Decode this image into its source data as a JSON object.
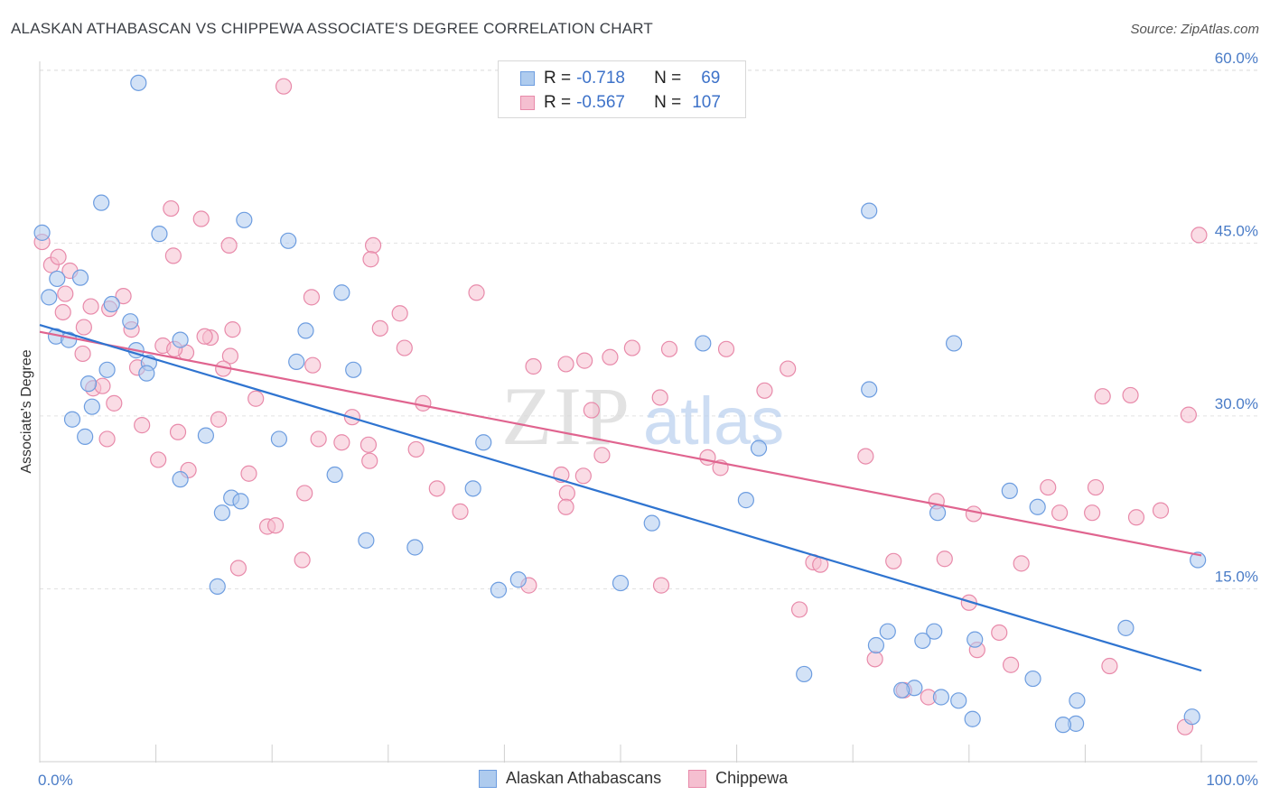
{
  "header": {
    "title": "ALASKAN ATHABASCAN VS CHIPPEWA ASSOCIATE'S DEGREE CORRELATION CHART",
    "source": "Source: ZipAtlas.com"
  },
  "legend": {
    "r_label": "R =",
    "n_label": "N =",
    "rows": [
      {
        "r": "-0.718",
        "n": "69"
      },
      {
        "r": "-0.567",
        "n": "107"
      }
    ]
  },
  "watermark": {
    "zip": "ZIP",
    "atlas": "atlas"
  },
  "colors": {
    "blue_fill": "#aecbee",
    "blue_stroke": "#6d9de0",
    "blue_line": "#2f74d0",
    "pink_fill": "#f5bfd0",
    "pink_stroke": "#e88aaa",
    "pink_line": "#e0648f",
    "tick_text": "#4a7cc7"
  },
  "chart_data": {
    "type": "scatter",
    "title": "ALASKAN ATHABASCAN VS CHIPPEWA ASSOCIATE'S DEGREE CORRELATION CHART",
    "xlabel": "",
    "ylabel": "Associate's Degree",
    "xlim": [
      0,
      100
    ],
    "ylim": [
      0,
      62.5
    ],
    "x_tick_labels": [
      "0.0%",
      "100.0%"
    ],
    "y_ticks": [
      15,
      30,
      45,
      60
    ],
    "y_tick_labels": [
      "15.0%",
      "30.0%",
      "45.0%",
      "60.0%"
    ],
    "grid": true,
    "legend_position": "top-center",
    "series": [
      {
        "name": "Alaskan Athabascans",
        "r": -0.718,
        "n": 69,
        "trend": {
          "x": [
            0,
            100
          ],
          "y": [
            37.9,
            7.9
          ]
        },
        "points": [
          [
            0.2,
            45.9
          ],
          [
            8.5,
            58.9
          ],
          [
            5.3,
            48.5
          ],
          [
            10.3,
            45.8
          ],
          [
            17.6,
            47.0
          ],
          [
            21.4,
            45.2
          ],
          [
            71.4,
            47.8
          ],
          [
            0.8,
            40.3
          ],
          [
            1.5,
            41.9
          ],
          [
            3.5,
            42.0
          ],
          [
            6.2,
            39.7
          ],
          [
            7.8,
            38.2
          ],
          [
            1.4,
            36.9
          ],
          [
            2.5,
            36.6
          ],
          [
            8.3,
            35.7
          ],
          [
            12.1,
            36.6
          ],
          [
            9.4,
            34.6
          ],
          [
            9.2,
            33.7
          ],
          [
            5.8,
            34.0
          ],
          [
            4.2,
            32.8
          ],
          [
            22.9,
            37.4
          ],
          [
            26.0,
            40.7
          ],
          [
            22.1,
            34.7
          ],
          [
            27.0,
            34.0
          ],
          [
            57.1,
            36.3
          ],
          [
            78.7,
            36.3
          ],
          [
            71.4,
            32.3
          ],
          [
            4.5,
            30.8
          ],
          [
            2.8,
            29.7
          ],
          [
            3.9,
            28.2
          ],
          [
            14.3,
            28.3
          ],
          [
            20.6,
            28.0
          ],
          [
            38.2,
            27.7
          ],
          [
            61.9,
            27.2
          ],
          [
            12.1,
            24.5
          ],
          [
            25.4,
            24.9
          ],
          [
            37.3,
            23.7
          ],
          [
            16.5,
            22.9
          ],
          [
            17.3,
            22.6
          ],
          [
            15.7,
            21.6
          ],
          [
            60.8,
            22.7
          ],
          [
            83.5,
            23.5
          ],
          [
            77.3,
            21.6
          ],
          [
            85.9,
            22.1
          ],
          [
            52.7,
            20.7
          ],
          [
            28.1,
            19.2
          ],
          [
            32.3,
            18.6
          ],
          [
            41.2,
            15.8
          ],
          [
            50.0,
            15.5
          ],
          [
            39.5,
            14.9
          ],
          [
            15.3,
            15.2
          ],
          [
            99.7,
            17.5
          ],
          [
            93.5,
            11.6
          ],
          [
            73.0,
            11.3
          ],
          [
            72.0,
            10.1
          ],
          [
            77.0,
            11.3
          ],
          [
            76.0,
            10.5
          ],
          [
            80.5,
            10.6
          ],
          [
            65.8,
            7.6
          ],
          [
            75.3,
            6.4
          ],
          [
            85.5,
            7.2
          ],
          [
            74.2,
            6.2
          ],
          [
            77.6,
            5.6
          ],
          [
            79.1,
            5.3
          ],
          [
            80.3,
            3.7
          ],
          [
            89.3,
            5.3
          ],
          [
            89.2,
            3.3
          ],
          [
            88.1,
            3.2
          ],
          [
            99.2,
            3.9
          ]
        ]
      },
      {
        "name": "Chippewa",
        "r": -0.567,
        "n": 107,
        "trend": {
          "x": [
            0,
            100
          ],
          "y": [
            37.3,
            17.9
          ]
        },
        "points": [
          [
            0.2,
            45.1
          ],
          [
            21.0,
            58.6
          ],
          [
            11.3,
            48.0
          ],
          [
            13.9,
            47.1
          ],
          [
            16.3,
            44.8
          ],
          [
            28.7,
            44.8
          ],
          [
            99.8,
            45.7
          ],
          [
            1.0,
            43.1
          ],
          [
            1.6,
            43.8
          ],
          [
            2.6,
            42.6
          ],
          [
            11.5,
            43.9
          ],
          [
            28.5,
            43.6
          ],
          [
            23.4,
            40.3
          ],
          [
            37.6,
            40.7
          ],
          [
            2.2,
            40.6
          ],
          [
            6.0,
            39.3
          ],
          [
            4.4,
            39.5
          ],
          [
            2.0,
            39.0
          ],
          [
            7.2,
            40.4
          ],
          [
            31.0,
            38.9
          ],
          [
            29.3,
            37.6
          ],
          [
            3.8,
            37.7
          ],
          [
            7.9,
            37.5
          ],
          [
            14.7,
            36.8
          ],
          [
            14.2,
            36.9
          ],
          [
            10.6,
            36.1
          ],
          [
            12.6,
            35.5
          ],
          [
            11.6,
            35.8
          ],
          [
            16.4,
            35.2
          ],
          [
            3.7,
            35.4
          ],
          [
            31.4,
            35.9
          ],
          [
            51.0,
            35.9
          ],
          [
            54.2,
            35.8
          ],
          [
            59.1,
            35.8
          ],
          [
            49.1,
            35.1
          ],
          [
            46.9,
            34.8
          ],
          [
            42.5,
            34.3
          ],
          [
            45.3,
            34.5
          ],
          [
            64.4,
            34.1
          ],
          [
            8.4,
            34.2
          ],
          [
            15.8,
            34.1
          ],
          [
            23.5,
            34.4
          ],
          [
            4.6,
            32.4
          ],
          [
            5.4,
            32.6
          ],
          [
            6.4,
            31.1
          ],
          [
            18.6,
            31.5
          ],
          [
            33.0,
            31.1
          ],
          [
            47.5,
            30.5
          ],
          [
            53.4,
            31.6
          ],
          [
            62.4,
            32.2
          ],
          [
            91.5,
            31.7
          ],
          [
            93.9,
            31.8
          ],
          [
            98.9,
            30.1
          ],
          [
            26.9,
            29.9
          ],
          [
            15.4,
            29.7
          ],
          [
            8.8,
            29.2
          ],
          [
            11.9,
            28.6
          ],
          [
            24.0,
            28.0
          ],
          [
            26.0,
            27.7
          ],
          [
            28.3,
            27.5
          ],
          [
            5.8,
            28.0
          ],
          [
            32.4,
            27.1
          ],
          [
            48.4,
            26.6
          ],
          [
            57.5,
            26.4
          ],
          [
            71.1,
            26.5
          ],
          [
            28.4,
            26.1
          ],
          [
            10.2,
            26.2
          ],
          [
            12.8,
            25.3
          ],
          [
            18.0,
            25.0
          ],
          [
            58.6,
            25.5
          ],
          [
            44.9,
            24.9
          ],
          [
            46.8,
            24.8
          ],
          [
            34.2,
            23.7
          ],
          [
            45.4,
            23.3
          ],
          [
            22.8,
            23.3
          ],
          [
            86.8,
            23.8
          ],
          [
            90.9,
            23.8
          ],
          [
            77.2,
            22.6
          ],
          [
            45.3,
            22.1
          ],
          [
            36.2,
            21.7
          ],
          [
            80.4,
            21.5
          ],
          [
            87.8,
            21.6
          ],
          [
            90.6,
            21.6
          ],
          [
            94.4,
            21.2
          ],
          [
            96.5,
            21.8
          ],
          [
            19.6,
            20.4
          ],
          [
            20.3,
            20.5
          ],
          [
            22.6,
            17.5
          ],
          [
            17.1,
            16.8
          ],
          [
            66.6,
            17.3
          ],
          [
            67.2,
            17.1
          ],
          [
            73.5,
            17.4
          ],
          [
            77.9,
            17.6
          ],
          [
            84.5,
            17.2
          ],
          [
            42.1,
            15.3
          ],
          [
            53.5,
            15.3
          ],
          [
            80.0,
            13.8
          ],
          [
            65.4,
            13.2
          ],
          [
            82.6,
            11.2
          ],
          [
            71.9,
            8.9
          ],
          [
            80.7,
            9.7
          ],
          [
            83.6,
            8.4
          ],
          [
            92.1,
            8.3
          ],
          [
            74.4,
            6.2
          ],
          [
            76.5,
            5.6
          ],
          [
            98.6,
            3.0
          ],
          [
            16.6,
            37.5
          ]
        ]
      }
    ]
  },
  "bottom_legend": [
    "Alaskan Athabascans",
    "Chippewa"
  ]
}
